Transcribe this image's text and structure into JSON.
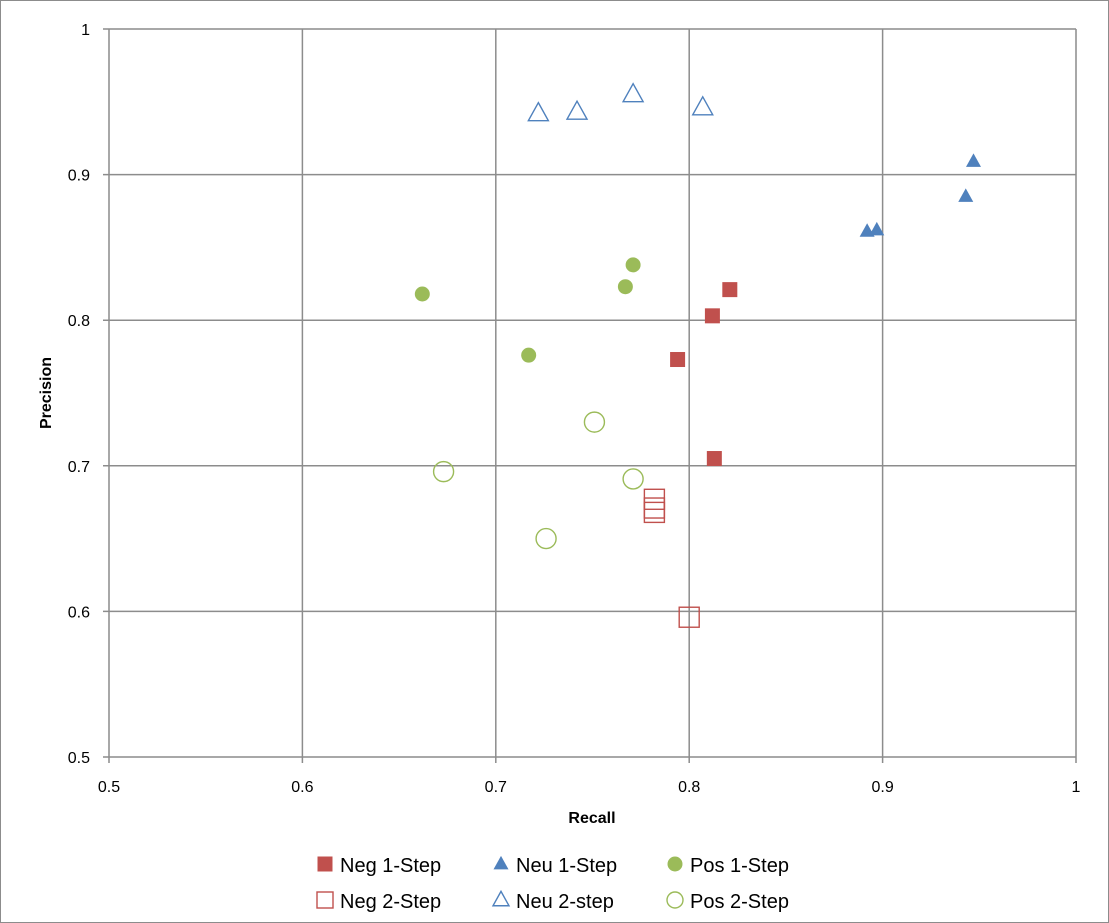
{
  "chart_data": {
    "type": "scatter",
    "xlabel": "Recall",
    "ylabel": "Precision",
    "xlim": [
      0.5,
      1
    ],
    "ylim": [
      0.5,
      1
    ],
    "x_ticks": [
      "0.5",
      "0.6",
      "0.7",
      "0.8",
      "0.9",
      "1"
    ],
    "y_ticks": [
      "0.5",
      "0.6",
      "0.7",
      "0.8",
      "0.9",
      "1"
    ],
    "grid": true,
    "legend_position": "bottom",
    "series": [
      {
        "name": "Neg 1-Step",
        "marker": "square",
        "filled": true,
        "color": "#c0504d",
        "points": [
          [
            0.821,
            0.821
          ],
          [
            0.812,
            0.803
          ],
          [
            0.794,
            0.773
          ],
          [
            0.813,
            0.705
          ]
        ]
      },
      {
        "name": "Neu 1-Step",
        "marker": "triangle",
        "filled": true,
        "color": "#4f81bd",
        "points": [
          [
            0.947,
            0.909
          ],
          [
            0.943,
            0.885
          ],
          [
            0.892,
            0.861
          ],
          [
            0.897,
            0.862
          ]
        ]
      },
      {
        "name": "Pos 1-Step",
        "marker": "circle",
        "filled": true,
        "color": "#9bbb59",
        "points": [
          [
            0.771,
            0.838
          ],
          [
            0.767,
            0.823
          ],
          [
            0.662,
            0.818
          ],
          [
            0.717,
            0.776
          ]
        ]
      },
      {
        "name": "Neg 2-Step",
        "marker": "square",
        "filled": false,
        "color": "#c0504d",
        "points": [
          [
            0.782,
            0.677
          ],
          [
            0.782,
            0.671
          ],
          [
            0.782,
            0.668
          ],
          [
            0.8,
            0.596
          ]
        ]
      },
      {
        "name": "Neu 2-step",
        "marker": "triangle",
        "filled": false,
        "color": "#4f81bd",
        "points": [
          [
            0.722,
            0.942
          ],
          [
            0.742,
            0.943
          ],
          [
            0.771,
            0.955
          ],
          [
            0.807,
            0.946
          ]
        ]
      },
      {
        "name": "Pos 2-Step",
        "marker": "circle",
        "filled": false,
        "color": "#9bbb59",
        "points": [
          [
            0.751,
            0.73
          ],
          [
            0.673,
            0.696
          ],
          [
            0.771,
            0.691
          ],
          [
            0.726,
            0.65
          ]
        ]
      }
    ],
    "legend_order": [
      0,
      1,
      2,
      3,
      4,
      5
    ]
  }
}
